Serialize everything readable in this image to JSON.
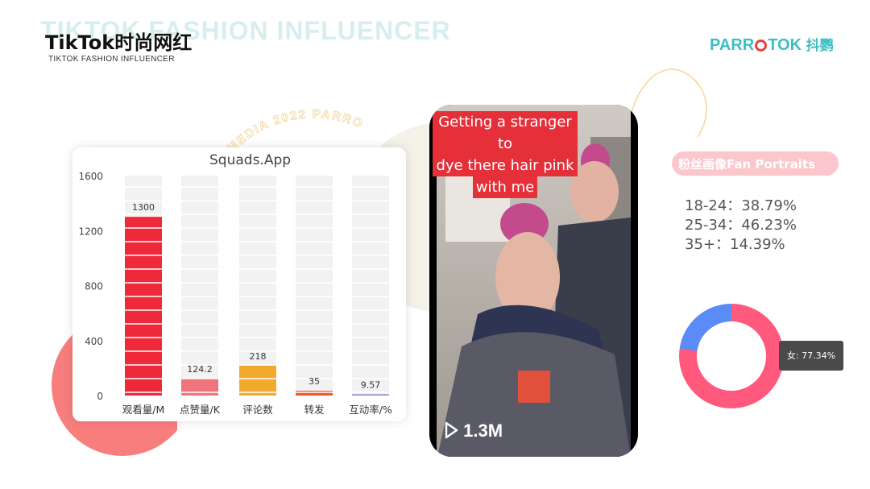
{
  "header": {
    "bg_title": "TIKTOK FASHION INFLUENCER",
    "title": "TikTok时尚网红",
    "subtitle": "TIKTOK FASHION INFLUENCER"
  },
  "logo": {
    "text_left": "PARR",
    "text_right": "TOK",
    "cn": "抖鹦"
  },
  "decor_text": "MEDIA 2022  PARROTOK",
  "chart_data": {
    "type": "bar",
    "title": "Squads.App",
    "categories": [
      "观看量/M",
      "点赞量/K",
      "评论数",
      "转发",
      "互动率/%"
    ],
    "values": [
      1300,
      124.2,
      218,
      35,
      9.57
    ],
    "value_labels": [
      "1300",
      "124.2",
      "218",
      "35",
      "9.57"
    ],
    "colors": [
      "#ee2a3a",
      "#f0747c",
      "#f2aa2d",
      "#ea5a2a",
      "#8b8ad2"
    ],
    "yticks": [
      "1600",
      "1200",
      "800",
      "400",
      "0"
    ],
    "ylim": [
      0,
      1600
    ],
    "grid": false
  },
  "video": {
    "caption_lines": [
      "Getting a stranger to",
      "dye there hair pink",
      "with me"
    ],
    "views": "1.3M"
  },
  "fans": {
    "heading": "粉丝画像Fan Portraits",
    "ages": [
      "18-24：38.79%",
      "25-34：46.23%",
      "35+：14.39%"
    ],
    "female_share": 0.7734,
    "tooltip": "女: 77.34%",
    "colors": {
      "female": "#ff5a7e",
      "male": "#5a8bf7"
    }
  }
}
